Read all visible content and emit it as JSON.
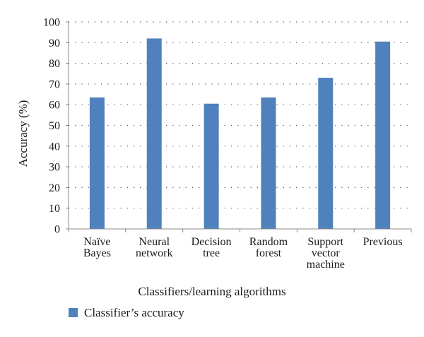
{
  "chart_data": {
    "type": "bar",
    "title": "",
    "xlabel": "Classifiers/learning algorithms",
    "ylabel": "Accuracy (%)",
    "ylim": [
      0,
      100
    ],
    "yticks": [
      0,
      10,
      20,
      30,
      40,
      50,
      60,
      70,
      80,
      90,
      100
    ],
    "categories": [
      [
        "Naïve",
        "Bayes"
      ],
      [
        "Neural",
        "network"
      ],
      [
        "Decision",
        "tree"
      ],
      [
        "Random",
        "forest"
      ],
      [
        "Support",
        "vector",
        "machine"
      ],
      [
        "Previous"
      ]
    ],
    "series": [
      {
        "name": "Classifier’s accuracy",
        "values": [
          63.5,
          92,
          60.5,
          63.5,
          73,
          90.5
        ],
        "color": "#4f81bd"
      }
    ],
    "grid": "horizontal dotted",
    "legend_position": "bottom-left"
  }
}
